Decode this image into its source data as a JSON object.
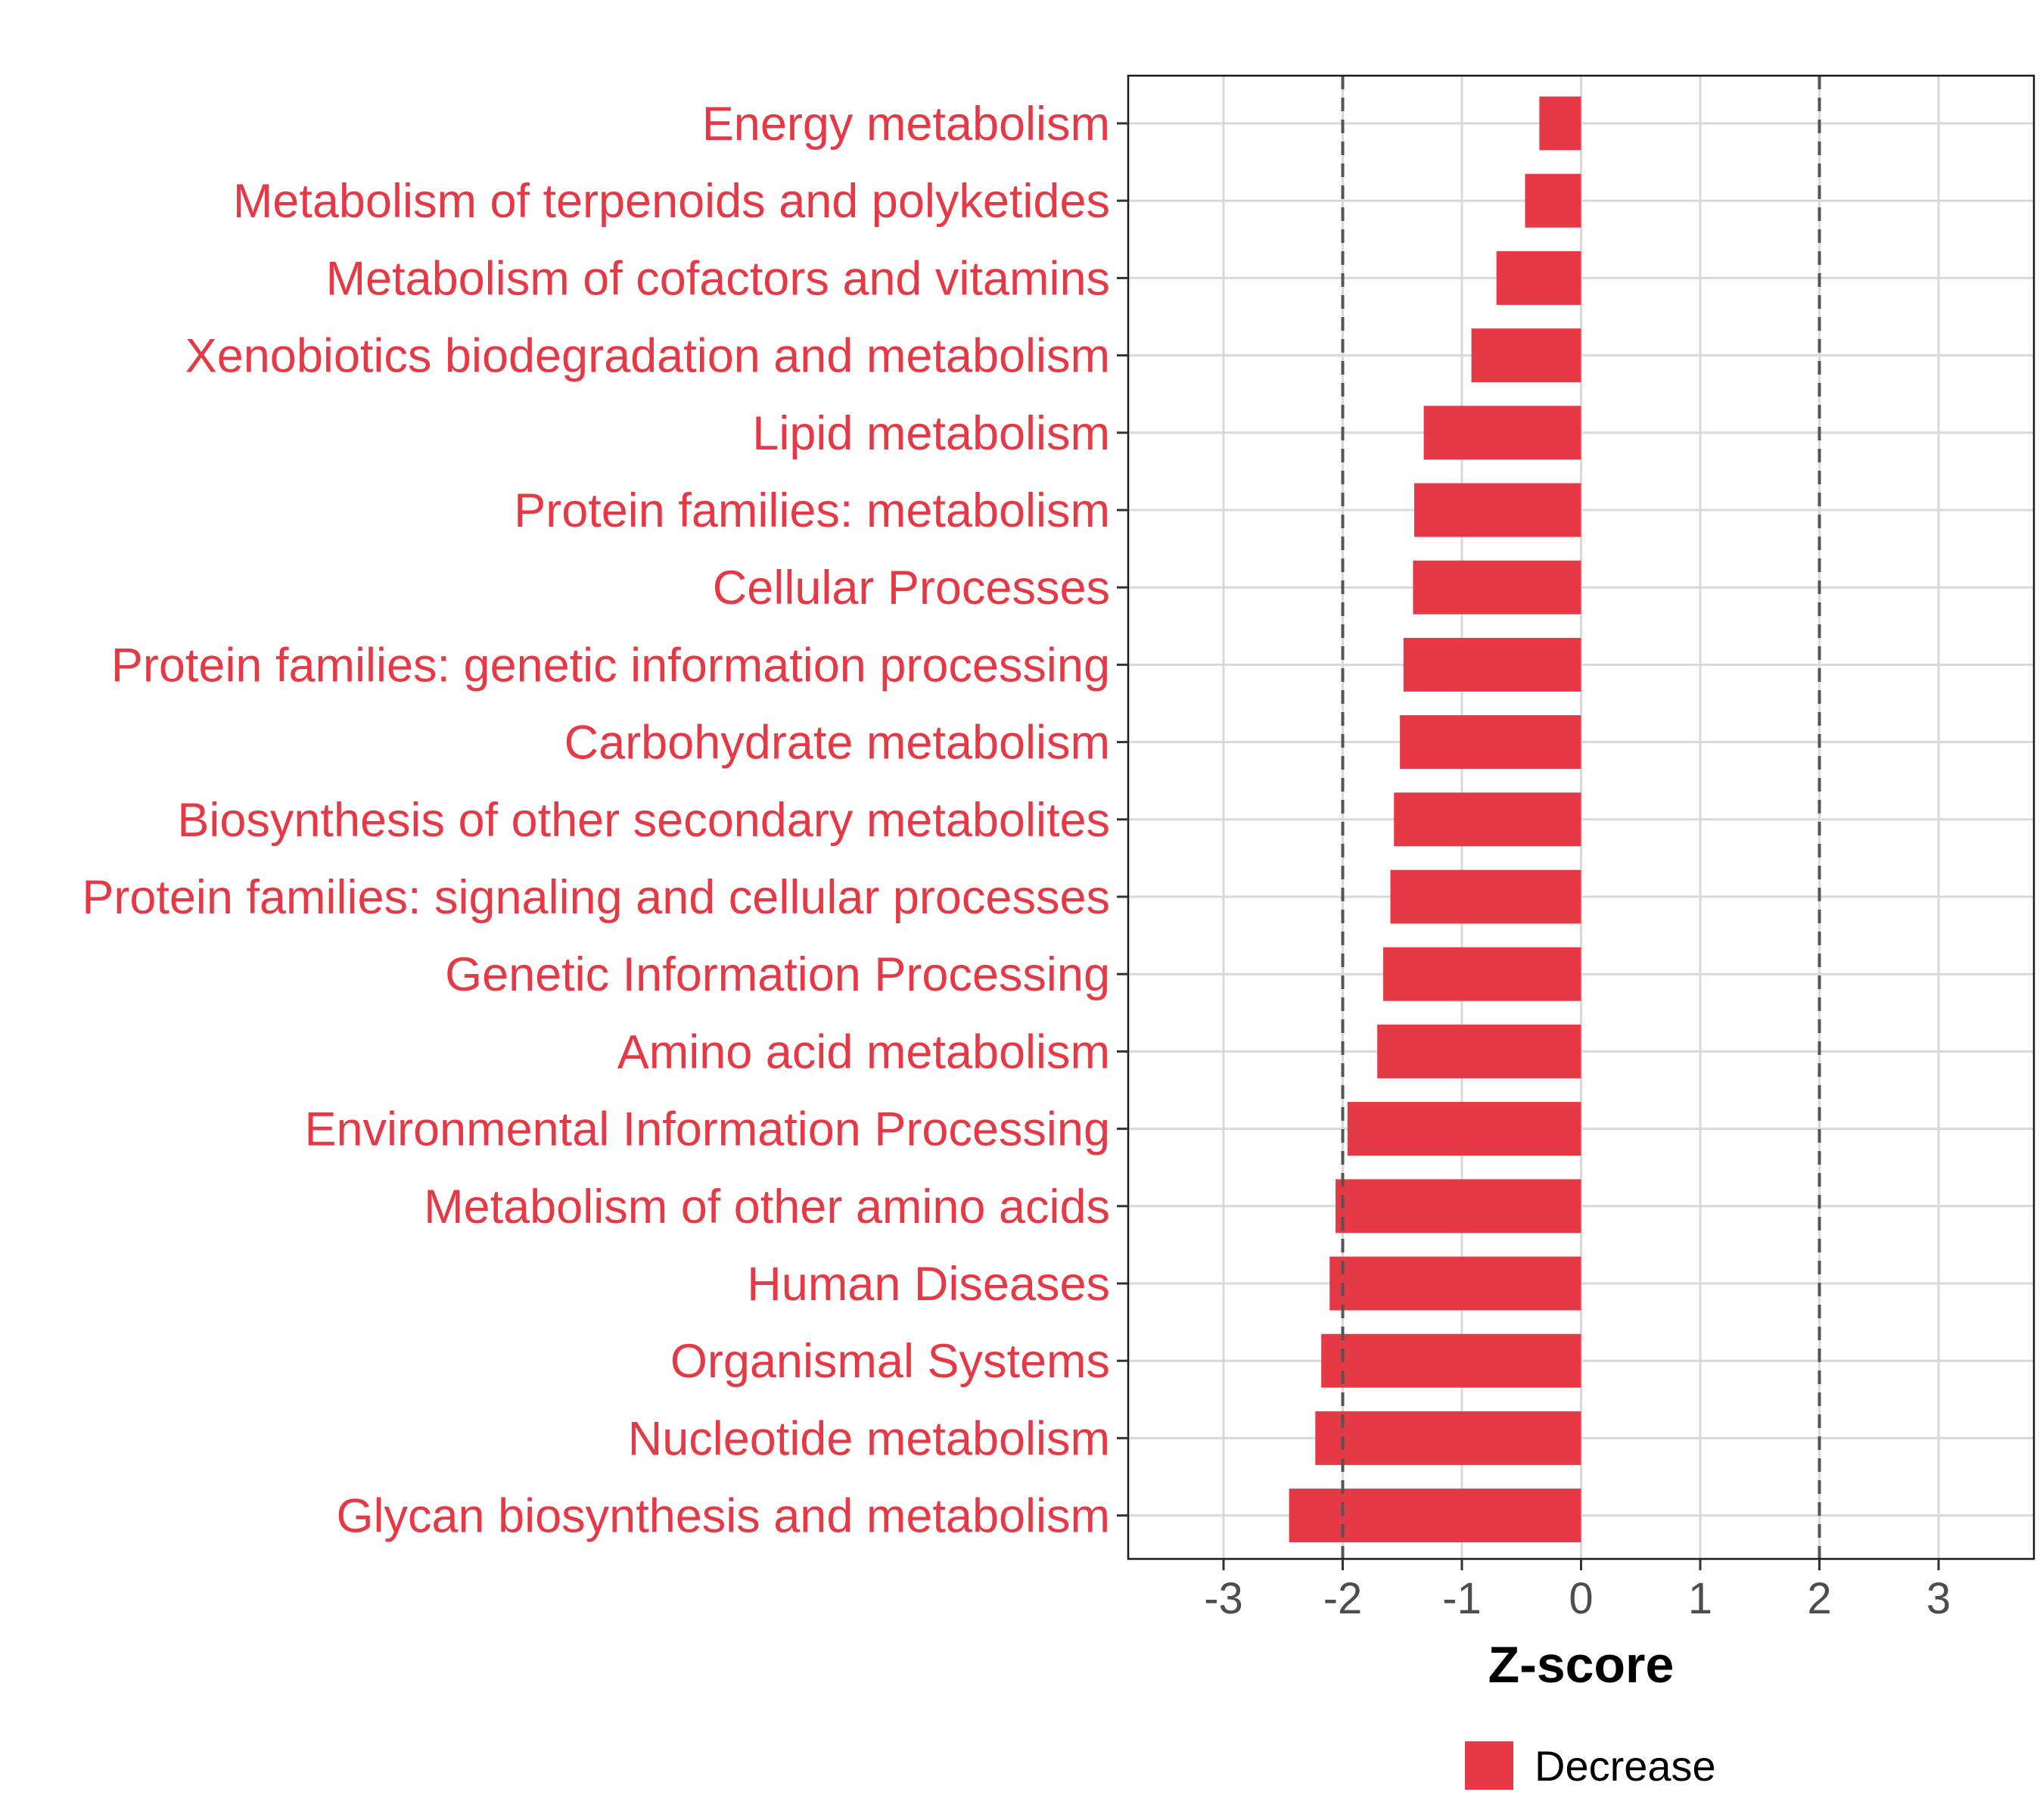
{
  "chart_data": {
    "type": "bar",
    "orientation": "horizontal",
    "categories": [
      "Energy metabolism",
      "Metabolism of terpenoids and polyketides",
      "Metabolism of cofactors and vitamins",
      "Xenobiotics biodegradation and metabolism",
      "Lipid metabolism",
      "Protein families: metabolism",
      "Cellular Processes",
      "Protein families: genetic information processing",
      "Carbohydrate metabolism",
      "Biosynthesis of other secondary metabolites",
      "Protein families: signaling and cellular processes",
      "Genetic Information Processing",
      "Amino acid metabolism",
      "Environmental Information Processing",
      "Metabolism of other amino acids",
      "Human Diseases",
      "Organismal Systems",
      "Nucleotide metabolism",
      "Glycan biosynthesis and metabolism"
    ],
    "values": [
      -0.35,
      -0.47,
      -0.71,
      -0.92,
      -1.32,
      -1.4,
      -1.41,
      -1.49,
      -1.52,
      -1.57,
      -1.6,
      -1.66,
      -1.71,
      -1.96,
      -2.06,
      -2.11,
      -2.18,
      -2.23,
      -2.45
    ],
    "xlabel": "Z-score",
    "ylabel": "",
    "xlim": [
      -3.8,
      3.8
    ],
    "xticks": [
      "-3",
      "-2",
      "-1",
      "0",
      "1",
      "2",
      "3"
    ],
    "threshold_lines": [
      -2,
      2
    ],
    "grid": true,
    "legend": {
      "position": "bottom",
      "entries": [
        {
          "label": "Decrease",
          "color": "#e63946"
        }
      ]
    },
    "colors": {
      "bar": "#e63946",
      "category_label": "#e63946",
      "tick_label": "#4d4d4d",
      "grid": "#d9d9d9",
      "threshold": "#555555",
      "axis_title": "#000000"
    }
  }
}
